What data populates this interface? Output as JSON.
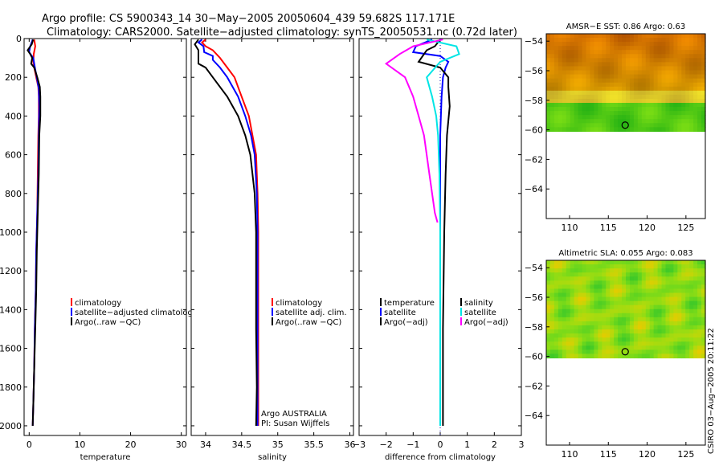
{
  "header": {
    "title_line1": "Argo profile: CS 5900343_14 30−May−2005 20050604_439 59.682S 117.171E",
    "title_line2": "Climatology: CARS2000. Satellite−adjusted climatology: synTS_20050531.nc (0.72d later)"
  },
  "footer": {
    "stamp": "CSIRO 03−Aug−2005 20:11:22"
  },
  "colors": {
    "climatology": "#ff0000",
    "satellite": "#0000ff",
    "argo": "#000000",
    "salinity_satellite": "#00e5e5",
    "salinity_argo": "#ff00ff",
    "zero_line": "#0000aa"
  },
  "chart_data": [
    {
      "type": "line",
      "id": "temperature",
      "xlabel": "temperature",
      "xlim": [
        -1,
        31
      ],
      "ylim": [
        2050,
        0
      ],
      "x_ticks": [
        "0",
        "10",
        "20",
        "30"
      ],
      "y_ticks": [
        "0",
        "200",
        "400",
        "600",
        "800",
        "1000",
        "1200",
        "1400",
        "1600",
        "1800",
        "2000"
      ],
      "legend": [
        "climatology",
        "satellite−adjusted climatology",
        "Argo(..raw −QC)"
      ],
      "series": [
        {
          "name": "climatology",
          "color_key": "climatology",
          "points": [
            [
              1.0,
              5
            ],
            [
              1.2,
              40
            ],
            [
              0.9,
              80
            ],
            [
              0.8,
              120
            ],
            [
              1.0,
              150
            ],
            [
              1.4,
              200
            ],
            [
              1.8,
              250
            ],
            [
              1.9,
              300
            ],
            [
              1.9,
              400
            ],
            [
              1.8,
              500
            ],
            [
              1.7,
              700
            ],
            [
              1.6,
              900
            ],
            [
              1.4,
              1100
            ],
            [
              1.3,
              1300
            ],
            [
              1.1,
              1500
            ],
            [
              1.0,
              1700
            ],
            [
              0.8,
              1900
            ],
            [
              0.7,
              2000
            ]
          ]
        },
        {
          "name": "satellite−adjusted climatology",
          "color_key": "satellite",
          "points": [
            [
              0.7,
              5
            ],
            [
              0.2,
              40
            ],
            [
              0.0,
              70
            ],
            [
              0.8,
              100
            ],
            [
              1.0,
              130
            ],
            [
              1.2,
              160
            ],
            [
              1.5,
              200
            ],
            [
              1.9,
              260
            ],
            [
              2.0,
              350
            ],
            [
              1.9,
              500
            ],
            [
              1.8,
              700
            ],
            [
              1.6,
              900
            ],
            [
              1.4,
              1100
            ],
            [
              1.3,
              1300
            ],
            [
              1.1,
              1500
            ],
            [
              1.0,
              1700
            ],
            [
              0.8,
              1900
            ],
            [
              0.7,
              2000
            ]
          ]
        },
        {
          "name": "Argo(..raw −QC)",
          "color_key": "argo",
          "points": [
            [
              0.8,
              5
            ],
            [
              0.5,
              30
            ],
            [
              -0.3,
              60
            ],
            [
              0.2,
              80
            ],
            [
              0.6,
              100
            ],
            [
              0.4,
              130
            ],
            [
              1.0,
              150
            ],
            [
              1.6,
              200
            ],
            [
              2.1,
              250
            ],
            [
              2.2,
              300
            ],
            [
              2.2,
              400
            ],
            [
              2.0,
              500
            ],
            [
              1.9,
              700
            ],
            [
              1.7,
              900
            ],
            [
              1.5,
              1100
            ],
            [
              1.4,
              1300
            ],
            [
              1.2,
              1500
            ],
            [
              1.0,
              1700
            ],
            [
              0.8,
              1900
            ],
            [
              0.7,
              2000
            ]
          ]
        }
      ]
    },
    {
      "type": "line",
      "id": "salinity",
      "xlabel": "salinity",
      "xlim": [
        33.8,
        36.05
      ],
      "ylim": [
        2050,
        0
      ],
      "x_ticks": [
        "34",
        "34.5",
        "35",
        "35.5",
        "36"
      ],
      "legend": [
        "climatology",
        "satellite adj. clim.",
        "Argo(..raw −QC)"
      ],
      "annotation": [
        "Argo AUSTRALIA",
        "PI: Susan Wijffels"
      ],
      "series": [
        {
          "name": "climatology",
          "color_key": "climatology",
          "points": [
            [
              34.0,
              5
            ],
            [
              33.95,
              20
            ],
            [
              34.0,
              40
            ],
            [
              34.1,
              60
            ],
            [
              34.2,
              100
            ],
            [
              34.3,
              150
            ],
            [
              34.4,
              200
            ],
            [
              34.5,
              300
            ],
            [
              34.6,
              400
            ],
            [
              34.65,
              500
            ],
            [
              34.7,
              600
            ],
            [
              34.72,
              800
            ],
            [
              34.73,
              1000
            ],
            [
              34.73,
              1500
            ],
            [
              34.73,
              2000
            ]
          ]
        },
        {
          "name": "satellite adj. clim.",
          "color_key": "satellite",
          "points": [
            [
              33.95,
              5
            ],
            [
              33.9,
              20
            ],
            [
              33.97,
              40
            ],
            [
              33.98,
              70
            ],
            [
              34.1,
              90
            ],
            [
              34.1,
              110
            ],
            [
              34.2,
              150
            ],
            [
              34.3,
              200
            ],
            [
              34.45,
              300
            ],
            [
              34.55,
              400
            ],
            [
              34.63,
              500
            ],
            [
              34.68,
              600
            ],
            [
              34.71,
              800
            ],
            [
              34.72,
              1000
            ],
            [
              34.72,
              1500
            ],
            [
              34.72,
              2000
            ]
          ]
        },
        {
          "name": "Argo(..raw −QC)",
          "color_key": "argo",
          "points": [
            [
              33.9,
              5
            ],
            [
              33.85,
              30
            ],
            [
              33.9,
              60
            ],
            [
              33.9,
              130
            ],
            [
              34.0,
              150
            ],
            [
              34.1,
              200
            ],
            [
              34.3,
              300
            ],
            [
              34.45,
              400
            ],
            [
              34.55,
              500
            ],
            [
              34.62,
              600
            ],
            [
              34.68,
              800
            ],
            [
              34.7,
              1000
            ],
            [
              34.7,
              1500
            ],
            [
              34.71,
              1800
            ],
            [
              34.7,
              2000
            ]
          ]
        }
      ]
    },
    {
      "type": "line",
      "id": "difference",
      "xlabel": "difference from climatology",
      "xlim": [
        -3,
        3
      ],
      "ylim": [
        2050,
        0
      ],
      "x_ticks": [
        "−3",
        "−2",
        "−1",
        "0",
        "1",
        "2",
        "3"
      ],
      "legend_left": [
        "temperature",
        "satellite",
        "Argo(−adj)"
      ],
      "legend_right": [
        "salinity",
        "satellite",
        "Argo(−adj)"
      ],
      "series": [
        {
          "name": "temperature satellite",
          "color_key": "satellite",
          "points": [
            [
              -0.3,
              5
            ],
            [
              -0.9,
              40
            ],
            [
              -1.0,
              70
            ],
            [
              0.0,
              90
            ],
            [
              0.3,
              120
            ],
            [
              0.2,
              150
            ],
            [
              0.1,
              200
            ],
            [
              0.05,
              300
            ],
            [
              0.0,
              500
            ],
            [
              0.0,
              800
            ],
            [
              0.0,
              1100
            ],
            [
              0.0,
              1400
            ],
            [
              0.0,
              1600
            ]
          ]
        },
        {
          "name": "temperature Argo(−adj)",
          "color_key": "argo",
          "points": [
            [
              0.0,
              5
            ],
            [
              -0.2,
              40
            ],
            [
              -0.5,
              60
            ],
            [
              -0.8,
              120
            ],
            [
              0.0,
              150
            ],
            [
              0.3,
              200
            ],
            [
              0.3,
              250
            ],
            [
              0.35,
              350
            ],
            [
              0.25,
              500
            ],
            [
              0.2,
              700
            ],
            [
              0.15,
              1000
            ],
            [
              0.1,
              1500
            ],
            [
              0.1,
              2000
            ]
          ]
        },
        {
          "name": "salinity satellite",
          "color_key": "salinity_satellite",
          "points": [
            [
              -0.5,
              5
            ],
            [
              0.6,
              40
            ],
            [
              0.7,
              80
            ],
            [
              0.0,
              120
            ],
            [
              -0.5,
              200
            ],
            [
              -0.3,
              300
            ],
            [
              -0.15,
              400
            ],
            [
              -0.08,
              500
            ],
            [
              -0.03,
              700
            ],
            [
              0.0,
              1000
            ],
            [
              0.0,
              1500
            ],
            [
              0.0,
              2000
            ]
          ]
        },
        {
          "name": "salinity Argo(−adj)",
          "color_key": "salinity_argo",
          "points": [
            [
              0.1,
              5
            ],
            [
              -1.0,
              40
            ],
            [
              -1.5,
              80
            ],
            [
              -2.0,
              130
            ],
            [
              -1.3,
              200
            ],
            [
              -1.0,
              300
            ],
            [
              -0.8,
              400
            ],
            [
              -0.6,
              500
            ],
            [
              -0.4,
              700
            ],
            [
              -0.2,
              900
            ],
            [
              -0.1,
              950
            ]
          ]
        }
      ]
    },
    {
      "type": "heatmap",
      "id": "sst_map",
      "title": "AMSR−E SST: 0.86 Argo: 0.63",
      "xlim": [
        107,
        127.5
      ],
      "ylim": [
        -66,
        -53.5
      ],
      "x_ticks": [
        "110",
        "115",
        "120",
        "125"
      ],
      "y_ticks": [
        "−54",
        "−56",
        "−58",
        "−60",
        "−62",
        "−64"
      ],
      "data_lat_range": [
        -60.1,
        -53.5
      ],
      "marker": {
        "lon": 117.171,
        "lat": -59.682
      }
    },
    {
      "type": "heatmap",
      "id": "sla_map",
      "title": "Altimetric SLA: 0.055 Argo: 0.083",
      "xlim": [
        107,
        127.5
      ],
      "ylim": [
        -66,
        -53.5
      ],
      "x_ticks": [
        "110",
        "115",
        "120",
        "125"
      ],
      "y_ticks": [
        "−54",
        "−56",
        "−58",
        "−60",
        "−62",
        "−64"
      ],
      "data_lat_range": [
        -60.1,
        -53.5
      ],
      "marker": {
        "lon": 117.171,
        "lat": -59.682
      }
    }
  ]
}
